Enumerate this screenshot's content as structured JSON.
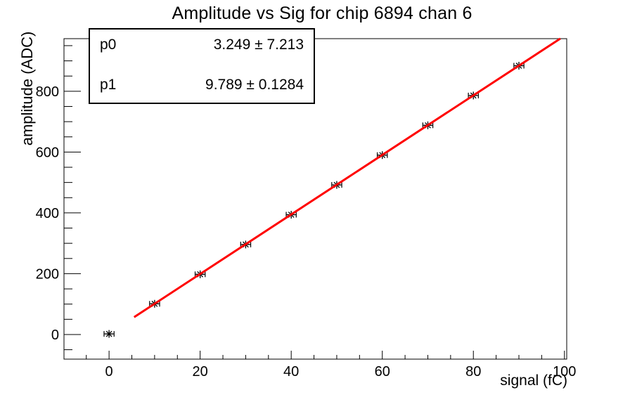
{
  "title": "Amplitude vs Sig for chip 6894 chan 6",
  "colors": {
    "background": "#ffffff",
    "axis": "#000000",
    "marker": "#000000",
    "fit_line": "#ff0000",
    "stats_border": "#000000"
  },
  "stats_box": {
    "rows": [
      {
        "label": "p0",
        "value": "3.249 ± 7.213"
      },
      {
        "label": "p1",
        "value": "9.789 ± 0.1284"
      }
    ]
  },
  "axes": {
    "x_title": "signal (fC)",
    "y_title": "amplitude (ADC)"
  },
  "chart_data": {
    "type": "scatter",
    "title": "Amplitude vs Sig for chip 6894 chan 6",
    "xlabel": "signal (fC)",
    "ylabel": "amplitude (ADC)",
    "x": [
      0,
      10,
      20,
      30,
      40,
      50,
      60,
      70,
      80,
      90
    ],
    "y": [
      2,
      101,
      198,
      296,
      394,
      492,
      590,
      688,
      786,
      884
    ],
    "x_error": 1.1,
    "marker_style": "asterisk",
    "fit": {
      "type": "linear",
      "p0": 3.249,
      "p0_error": 7.213,
      "p1": 9.789,
      "p1_error": 0.1284,
      "draw_range": [
        5.5,
        99.1
      ]
    },
    "xlim": [
      -9.9,
      100.5
    ],
    "ylim": [
      -81,
      973
    ],
    "x_major_ticks": [
      0,
      20,
      40,
      60,
      80,
      100
    ],
    "x_minor_tick_step": 5,
    "y_major_ticks": [
      0,
      200,
      400,
      600,
      800
    ],
    "y_minor_tick_step": 50,
    "grid": false,
    "legend": false
  }
}
